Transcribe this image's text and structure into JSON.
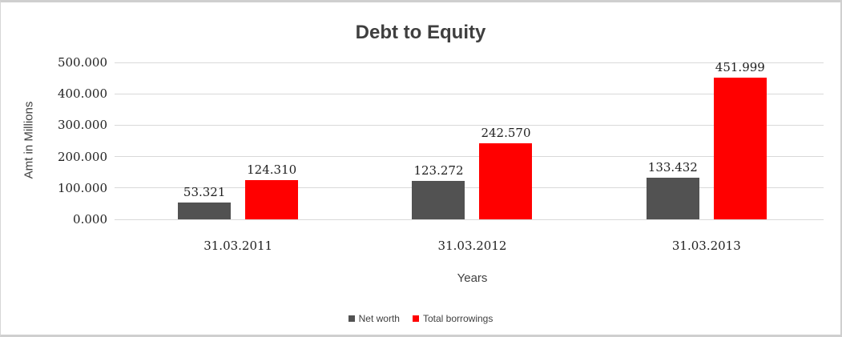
{
  "chart_data": {
    "type": "bar",
    "title": "Debt to Equity",
    "xlabel": "Years",
    "ylabel": "Amt in Millions",
    "categories": [
      "31.03.2011",
      "31.03.2012",
      "31.03.2013"
    ],
    "series": [
      {
        "name": "Net worth",
        "color": "#525252",
        "values": [
          53.321,
          123.272,
          133.432
        ]
      },
      {
        "name": "Total borrowings",
        "color": "#ff0000",
        "values": [
          124.31,
          242.57,
          451.999
        ]
      }
    ],
    "value_label_decimals": 3,
    "ylim": [
      0,
      500
    ],
    "ytick_step": 100,
    "ytick_labels": [
      "0.000",
      "100.000",
      "200.000",
      "300.000",
      "400.000",
      "500.000"
    ],
    "grid": true,
    "legend_position": "bottom"
  },
  "style": {
    "gridline_color": "#d9d9d9",
    "number_text_color": "#1f1f1f",
    "axis_title_color": "#404040",
    "title_color": "#3f3f3f",
    "frame_border_color": "#cfcfcf"
  }
}
